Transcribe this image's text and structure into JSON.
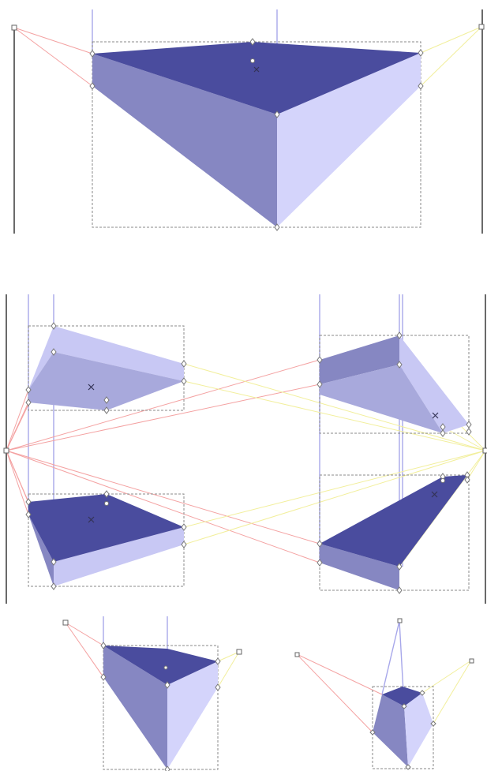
{
  "colors": {
    "top_face": "#4a4c9e",
    "left_face": "#8687c2",
    "right_face": "#d4d4fb",
    "ray_red": "#f4a2a2",
    "ray_yellow": "#f2ef9c",
    "ray_blue": "#a7a7ea",
    "bounding_box": "#888888"
  },
  "icons": {
    "handle": "diamond-handle-icon",
    "vanishing_point": "square-handle-icon",
    "center": "cross-center-icon"
  }
}
